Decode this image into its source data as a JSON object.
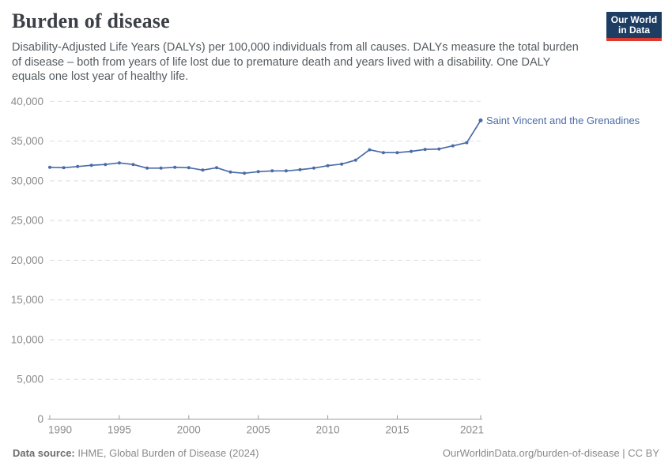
{
  "header": {
    "title": "Burden of disease",
    "subtitle": "Disability-Adjusted Life Years (DALYs) per 100,000 individuals from all causes. DALYs measure the total burden of disease – both from years of life lost due to premature death and years lived with a disability. One DALY equals one lost year of healthy life.",
    "logo": {
      "line1": "Our World",
      "line2": "in Data"
    }
  },
  "chart_data": {
    "type": "line",
    "title": "Burden of disease",
    "series": [
      {
        "name": "Saint Vincent and the Grenadines",
        "values": [
          31700,
          31650,
          31800,
          31950,
          32050,
          32250,
          32050,
          31600,
          31600,
          31700,
          31650,
          31350,
          31650,
          31100,
          30950,
          31150,
          31250,
          31250,
          31400,
          31600,
          31900,
          32100,
          32600,
          33900,
          33550,
          33550,
          33700,
          33950,
          34000,
          34400,
          34800,
          37600
        ]
      }
    ],
    "x": [
      1990,
      1991,
      1992,
      1993,
      1994,
      1995,
      1996,
      1997,
      1998,
      1999,
      2000,
      2001,
      2002,
      2003,
      2004,
      2005,
      2006,
      2007,
      2008,
      2009,
      2010,
      2011,
      2012,
      2013,
      2014,
      2015,
      2016,
      2017,
      2018,
      2019,
      2020,
      2021
    ],
    "xlabel": "",
    "ylabel": "",
    "ylim": [
      0,
      40000
    ],
    "yticks": [
      0,
      5000,
      10000,
      15000,
      20000,
      25000,
      30000,
      35000,
      40000
    ],
    "xticks": [
      1990,
      1995,
      2000,
      2005,
      2010,
      2015,
      2021
    ],
    "grid": "horizontal-dashed",
    "legend_position": "end-of-line-label",
    "colors": {
      "line": "#4a6ba8",
      "series_label": "#4a6ba8",
      "gridline": "#dedede",
      "axis": "#9a9a9a",
      "tick_label": "#8b8b8b"
    }
  },
  "footer": {
    "source_label": "Data source:",
    "source_text": " IHME, Global Burden of Disease (2024)",
    "credit": "OurWorldinData.org/burden-of-disease | CC BY"
  }
}
